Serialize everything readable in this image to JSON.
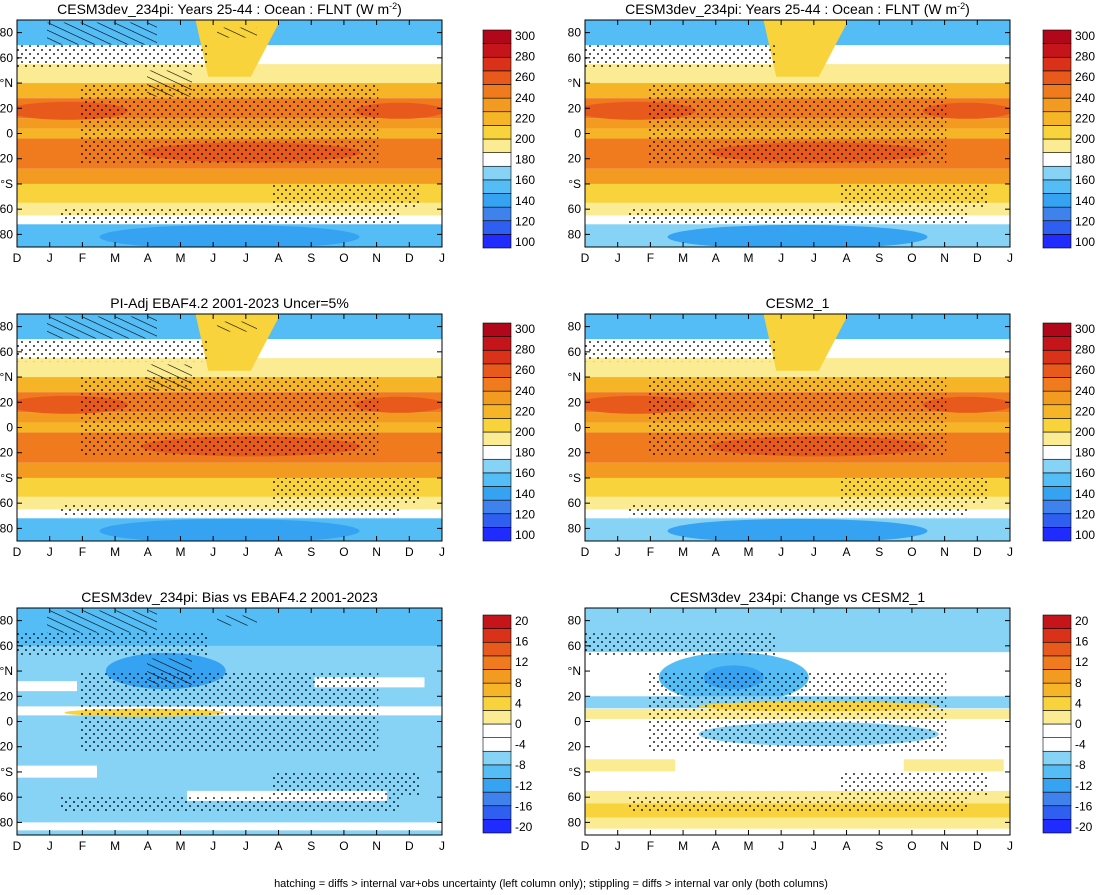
{
  "figure": {
    "caption": "hatching = diffs > internal var+obs uncertainty (left column only); stippling = diffs > internal var only (both columns)"
  },
  "colors": {
    "abs_scale": [
      "#1f2bff",
      "#2f5ff0",
      "#3f82ec",
      "#35a2f2",
      "#54bdf5",
      "#86d3f5",
      "#ffffff",
      "#fbeb92",
      "#f8d33c",
      "#f6b527",
      "#f39a20",
      "#ef7b1e",
      "#e85a1c",
      "#d93219",
      "#c5141a",
      "#b1071a"
    ],
    "diff_scale": [
      "#1f2bff",
      "#2f5ff0",
      "#3f82ec",
      "#35a2f2",
      "#54bdf5",
      "#86d3f5",
      "#ffffff",
      "#ffffff",
      "#fbeb92",
      "#f8d33c",
      "#f6b527",
      "#f39a20",
      "#ef7b1e",
      "#e85a1c",
      "#d93219",
      "#c5141a"
    ]
  },
  "chart_data": [
    {
      "type": "heatmap",
      "title": "CESM3dev_234pi: Years 25-44 : Ocean : FLNT (W m",
      "title_sup": "-2",
      "title_tail": ")",
      "x_ticks": [
        "D",
        "J",
        "F",
        "M",
        "A",
        "M",
        "J",
        "J",
        "A",
        "S",
        "O",
        "N",
        "D",
        "J"
      ],
      "y_ticks": [
        "80",
        "60",
        "°N",
        "20",
        "0",
        "20",
        "°S",
        "60",
        "80"
      ],
      "ylim": [
        -90,
        90
      ],
      "colorbar": {
        "ticks": [
          "300",
          "280",
          "260",
          "240",
          "220",
          "200",
          "180",
          "160",
          "140",
          "120",
          "100"
        ],
        "range": [
          90,
          310
        ]
      },
      "overlays": [
        "hatching",
        "stippling"
      ]
    },
    {
      "type": "heatmap",
      "title": "CESM3dev_234pi: Years 25-44 : Ocean : FLNT (W m",
      "title_sup": "-2",
      "title_tail": ")",
      "x_ticks": [
        "D",
        "J",
        "F",
        "M",
        "A",
        "M",
        "J",
        "J",
        "A",
        "S",
        "O",
        "N",
        "D",
        "J"
      ],
      "y_ticks": [
        "80",
        "60",
        "°N",
        "20",
        "0",
        "20",
        "°S",
        "60",
        "80"
      ],
      "ylim": [
        -90,
        90
      ],
      "colorbar": {
        "ticks": [
          "300",
          "280",
          "260",
          "240",
          "220",
          "200",
          "180",
          "160",
          "140",
          "120",
          "100"
        ],
        "range": [
          90,
          310
        ]
      },
      "overlays": [
        "stippling"
      ]
    },
    {
      "type": "heatmap",
      "title": "PI-Adj EBAF4.2 2001-2023 Uncer=5%",
      "title_sup": "",
      "title_tail": "",
      "x_ticks": [
        "D",
        "J",
        "F",
        "M",
        "A",
        "M",
        "J",
        "J",
        "A",
        "S",
        "O",
        "N",
        "D",
        "J"
      ],
      "y_ticks": [
        "80",
        "60",
        "°N",
        "20",
        "0",
        "20",
        "°S",
        "60",
        "80"
      ],
      "ylim": [
        -90,
        90
      ],
      "colorbar": {
        "ticks": [
          "300",
          "280",
          "260",
          "240",
          "220",
          "200",
          "180",
          "160",
          "140",
          "120",
          "100"
        ],
        "range": [
          90,
          310
        ]
      },
      "overlays": [
        "hatching",
        "stippling"
      ]
    },
    {
      "type": "heatmap",
      "title": "CESM2_1",
      "title_sup": "",
      "title_tail": "",
      "x_ticks": [
        "D",
        "J",
        "F",
        "M",
        "A",
        "M",
        "J",
        "J",
        "A",
        "S",
        "O",
        "N",
        "D",
        "J"
      ],
      "y_ticks": [
        "80",
        "60",
        "°N",
        "20",
        "0",
        "20",
        "°S",
        "60",
        "80"
      ],
      "ylim": [
        -90,
        90
      ],
      "colorbar": {
        "ticks": [
          "300",
          "280",
          "260",
          "240",
          "220",
          "200",
          "180",
          "160",
          "140",
          "120",
          "100"
        ],
        "range": [
          90,
          310
        ]
      },
      "overlays": [
        "stippling"
      ]
    },
    {
      "type": "heatmap",
      "title": "CESM3dev_234pi: Bias vs EBAF4.2 2001-2023",
      "title_sup": "",
      "title_tail": "",
      "x_ticks": [
        "D",
        "J",
        "F",
        "M",
        "A",
        "M",
        "J",
        "J",
        "A",
        "S",
        "O",
        "N",
        "D",
        "J"
      ],
      "y_ticks": [
        "80",
        "60",
        "°N",
        "20",
        "0",
        "20",
        "°S",
        "60",
        "80"
      ],
      "ylim": [
        -90,
        90
      ],
      "colorbar": {
        "ticks": [
          "20",
          "16",
          "12",
          "8",
          "4",
          "0",
          "-4",
          "-8",
          "-12",
          "-16",
          "-20"
        ],
        "range": [
          -22,
          22
        ]
      },
      "overlays": [
        "hatching",
        "stippling"
      ]
    },
    {
      "type": "heatmap",
      "title": "CESM3dev_234pi: Change vs CESM2_1",
      "title_sup": "",
      "title_tail": "",
      "x_ticks": [
        "D",
        "J",
        "F",
        "M",
        "A",
        "M",
        "J",
        "J",
        "A",
        "S",
        "O",
        "N",
        "D",
        "J"
      ],
      "y_ticks": [
        "80",
        "60",
        "°N",
        "20",
        "0",
        "20",
        "°S",
        "60",
        "80"
      ],
      "ylim": [
        -90,
        90
      ],
      "colorbar": {
        "ticks": [
          "20",
          "16",
          "12",
          "8",
          "4",
          "0",
          "-4",
          "-8",
          "-12",
          "-16",
          "-20"
        ],
        "range": [
          -22,
          22
        ]
      },
      "overlays": [
        "stippling"
      ]
    }
  ]
}
